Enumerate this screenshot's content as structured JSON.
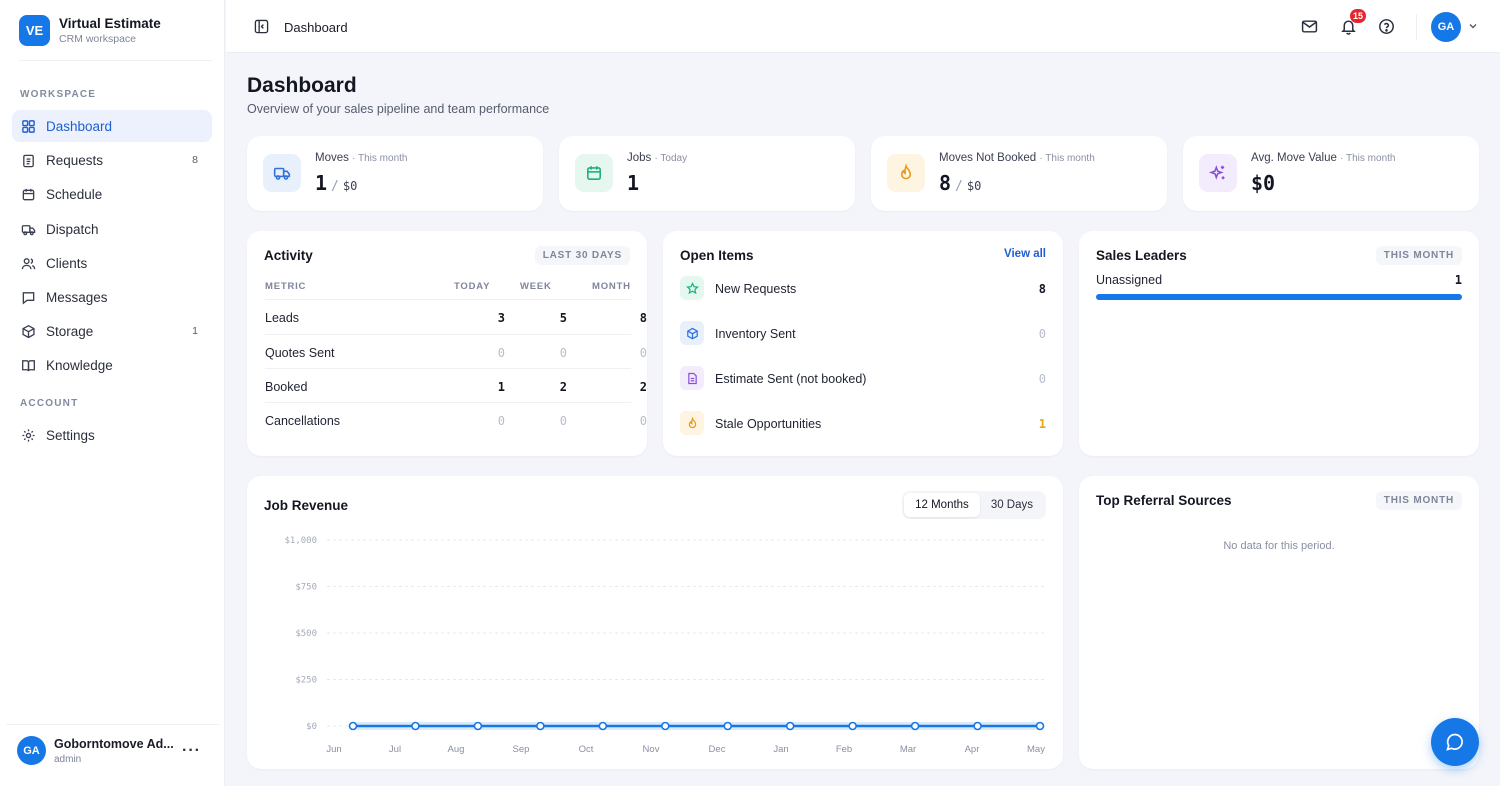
{
  "brand": {
    "logo": "VE",
    "name": "Virtual Estimate",
    "sub": "CRM workspace"
  },
  "sidebar": {
    "workspace_label": "WORKSPACE",
    "account_label": "ACCOUNT",
    "items": [
      {
        "label": "Dashboard",
        "icon": "grid-icon"
      },
      {
        "label": "Requests",
        "icon": "clipboard-icon",
        "count": "8"
      },
      {
        "label": "Schedule",
        "icon": "calendar-icon"
      },
      {
        "label": "Dispatch",
        "icon": "truck-icon"
      },
      {
        "label": "Clients",
        "icon": "users-icon"
      },
      {
        "label": "Messages",
        "icon": "message-icon"
      },
      {
        "label": "Storage",
        "icon": "box-icon",
        "count": "1"
      },
      {
        "label": "Knowledge",
        "icon": "book-icon"
      }
    ],
    "settings_label": "Settings"
  },
  "user": {
    "initials": "GA",
    "name": "Goborntomove Ad...",
    "role": "admin"
  },
  "topbar": {
    "title": "Dashboard",
    "notif_count": "15",
    "avatar": "GA"
  },
  "page": {
    "title": "Dashboard",
    "subtitle": "Overview of your sales pipeline and team performance"
  },
  "stats": [
    {
      "label": "Moves",
      "period": "· This month",
      "value": "1",
      "sub": "$0",
      "icon": "truck-icon",
      "color": "#2f6fe0"
    },
    {
      "label": "Jobs",
      "period": "· Today",
      "value": "1",
      "icon": "calendar-icon",
      "color": "#19b37a"
    },
    {
      "label": "Moves Not Booked",
      "period": "· This month",
      "value": "8",
      "sub": "$0",
      "icon": "flame-icon",
      "color": "#e89a17"
    },
    {
      "label": "Avg. Move Value",
      "period": "· This month",
      "value": "$0",
      "icon": "sparkle-icon",
      "color": "#8a4fd8"
    }
  ],
  "activity": {
    "title": "Activity",
    "pill": "LAST 30 DAYS",
    "headers": {
      "metric": "METRIC",
      "today": "TODAY",
      "week": "WEEK",
      "month": "MONTH"
    },
    "rows": [
      {
        "label": "Leads",
        "today": "3",
        "week": "5",
        "month": "8"
      },
      {
        "label": "Quotes Sent",
        "today": "0",
        "week": "0",
        "month": "0"
      },
      {
        "label": "Booked",
        "today": "1",
        "week": "2",
        "month": "2"
      },
      {
        "label": "Cancellations",
        "today": "0",
        "week": "0",
        "month": "0"
      }
    ]
  },
  "open_items": {
    "title": "Open Items",
    "link": "View all",
    "rows": [
      {
        "label": "New Requests",
        "value": "8",
        "icon": "star-icon"
      },
      {
        "label": "Inventory Sent",
        "value": "0",
        "icon": "cube-icon"
      },
      {
        "label": "Estimate Sent (not booked)",
        "value": "0",
        "icon": "document-icon"
      },
      {
        "label": "Stale Opportunities",
        "value": "1",
        "icon": "flame-icon"
      }
    ]
  },
  "sales_leaders": {
    "title": "Sales Leaders",
    "pill": "THIS MONTH",
    "rows": [
      {
        "name": "Unassigned",
        "value": "1",
        "share": 1.0
      }
    ]
  },
  "revenue": {
    "title": "Job Revenue",
    "tabs": [
      "12 Months",
      "30 Days"
    ]
  },
  "referrals": {
    "title": "Top Referral Sources",
    "pill": "THIS MONTH",
    "empty": "No data for this period."
  },
  "chart_data": {
    "type": "line",
    "categories": [
      "Jun",
      "Jul",
      "Aug",
      "Sep",
      "Oct",
      "Nov",
      "Dec",
      "Jan",
      "Feb",
      "Mar",
      "Apr",
      "May"
    ],
    "series": [
      {
        "values": [
          0,
          0,
          0,
          0,
          0,
          0,
          0,
          0,
          0,
          0,
          0,
          0
        ]
      }
    ],
    "yticks": [
      "$1,000",
      "$750",
      "$500",
      "$250",
      "$0"
    ],
    "ylim": [
      0,
      1000
    ],
    "grid": true,
    "color": "#1677e6"
  }
}
